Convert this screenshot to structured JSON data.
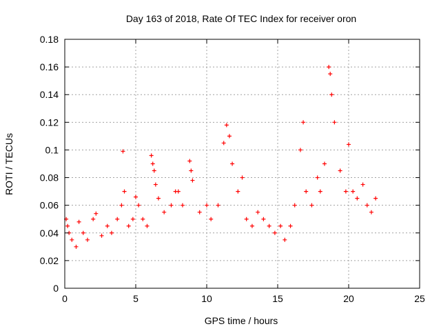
{
  "chart_data": {
    "type": "scatter",
    "title": "Day 163 of 2018, Rate Of TEC Index for receiver oron",
    "xlabel": "GPS time / hours",
    "ylabel": "ROTI / TECUs",
    "xlim": [
      0,
      25
    ],
    "ylim": [
      0,
      0.18
    ],
    "xticks": [
      "0",
      "5",
      "10",
      "15",
      "20",
      "25"
    ],
    "yticks": [
      "0",
      "0.02",
      "0.04",
      "0.06",
      "0.08",
      "0.1",
      "0.12",
      "0.14",
      "0.16",
      "0.18"
    ],
    "grid": true,
    "marker": "+",
    "color": "#ff0000",
    "series": [
      {
        "x": [
          0.1,
          0.2,
          0.3,
          0.5,
          0.8,
          1.0,
          1.3,
          1.6,
          2.0,
          2.2,
          2.6,
          3.0,
          3.3,
          3.7,
          4.0,
          4.1,
          4.2,
          4.5,
          4.8,
          5.0,
          5.2,
          5.5,
          5.8,
          6.1,
          6.2,
          6.3,
          6.4,
          6.6,
          7.0,
          7.5,
          7.8,
          8.0,
          8.3,
          8.8,
          8.9,
          9.0,
          9.5,
          10.0,
          10.3,
          10.8,
          11.2,
          11.4,
          11.6,
          11.8,
          12.2,
          12.5,
          12.8,
          13.2,
          13.6,
          14.0,
          14.4,
          14.8,
          15.2,
          15.5,
          15.9,
          16.2,
          16.6,
          16.8,
          17.0,
          17.4,
          17.8,
          18.0,
          18.3,
          18.6,
          18.7,
          18.8,
          19.0,
          19.4,
          19.8,
          20.0,
          20.3,
          20.6,
          21.0,
          21.3,
          21.6,
          21.9
        ],
        "y": [
          0.05,
          0.045,
          0.04,
          0.035,
          0.03,
          0.048,
          0.04,
          0.035,
          0.05,
          0.054,
          0.038,
          0.045,
          0.04,
          0.05,
          0.06,
          0.099,
          0.07,
          0.045,
          0.05,
          0.066,
          0.06,
          0.05,
          0.045,
          0.096,
          0.09,
          0.085,
          0.075,
          0.065,
          0.055,
          0.06,
          0.07,
          0.07,
          0.06,
          0.092,
          0.085,
          0.078,
          0.055,
          0.06,
          0.05,
          0.06,
          0.105,
          0.118,
          0.11,
          0.09,
          0.07,
          0.08,
          0.05,
          0.045,
          0.055,
          0.05,
          0.045,
          0.04,
          0.045,
          0.035,
          0.045,
          0.06,
          0.1,
          0.12,
          0.07,
          0.06,
          0.08,
          0.07,
          0.09,
          0.16,
          0.155,
          0.14,
          0.12,
          0.085,
          0.07,
          0.104,
          0.07,
          0.065,
          0.075,
          0.06,
          0.055,
          0.065
        ]
      }
    ]
  }
}
